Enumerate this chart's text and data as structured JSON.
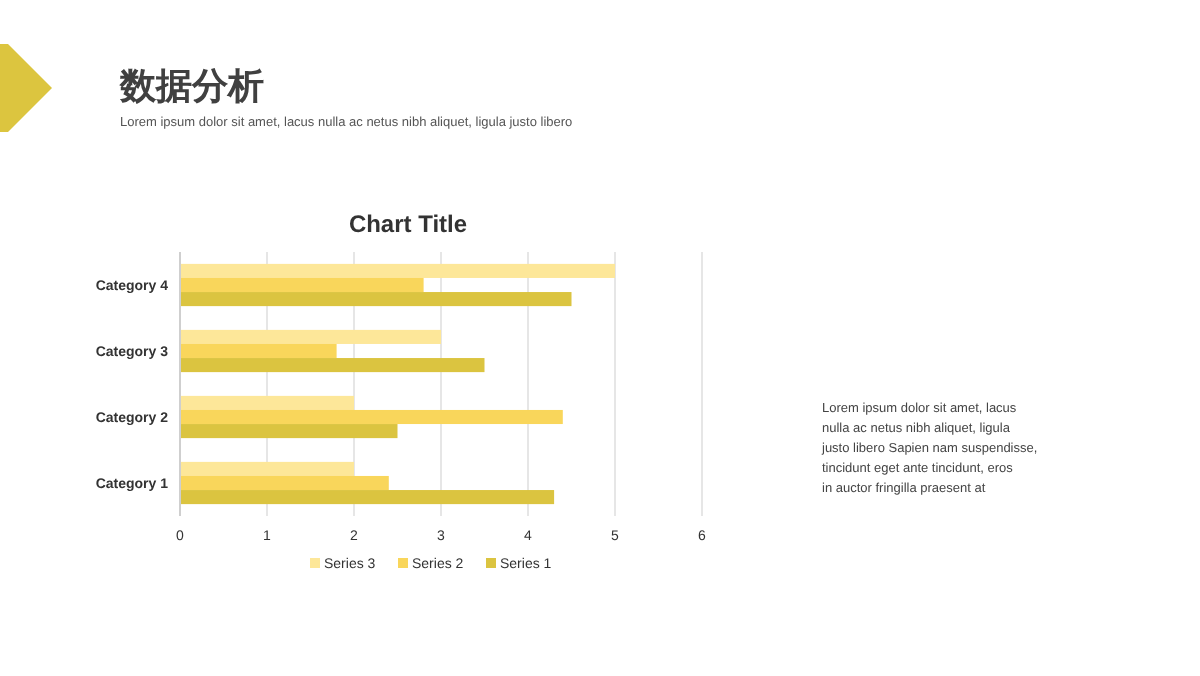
{
  "chart_data": {
    "type": "bar",
    "orientation": "horizontal",
    "title": "数据分析",
    "subtitle": "Lorem ipsum dolor sit amet, lacus nulla ac netus nibh aliquet, ligula justo libero",
    "annotations": [
      "Chart Title",
      "Lorem ipsum dolor sit amet, lacus nulla ac netus nibh aliquet, ligula justo libero Sapien nam suspendisse, tincidunt eget ante tincidunt, eros in auctor fringilla praesent at"
    ],
    "categories": [
      "Category 4",
      "Category 3",
      "Category 2",
      "Category 1"
    ],
    "series": [
      {
        "name": "Series 3",
        "color": "#fde799",
        "values": [
          5,
          3,
          2,
          2
        ]
      },
      {
        "name": "Series 2",
        "color": "#f9d65b",
        "values": [
          2.8,
          1.8,
          4.4,
          2.4
        ]
      },
      {
        "name": "Series 1",
        "color": "#dbc440",
        "values": [
          4.5,
          3.5,
          2.5,
          4.3
        ]
      }
    ],
    "xlim": [
      0,
      6
    ],
    "xticks": [
      0,
      1,
      2,
      3,
      4,
      5,
      6
    ],
    "grid": "x",
    "legend": "bottom"
  }
}
